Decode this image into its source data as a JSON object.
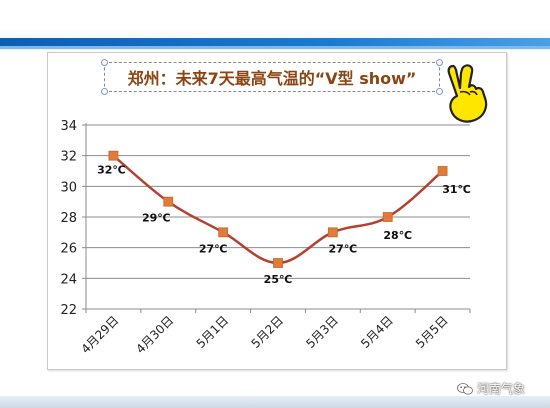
{
  "header": {
    "accent_color": "#0b5fb3"
  },
  "chart_data": {
    "type": "line",
    "title": "郑州：未来7天最高气温的“V型 show”",
    "categories": [
      "4月29日",
      "4月30日",
      "5月1日",
      "5月2日",
      "5月3日",
      "5月4日",
      "5月5日"
    ],
    "series": [
      {
        "values": [
          32,
          29,
          27,
          25,
          27,
          28,
          31
        ],
        "data_labels": [
          "32℃",
          "29℃",
          "27℃",
          "25℃",
          "27℃",
          "28℃",
          "31℃"
        ],
        "line_color": "#b5402f",
        "marker_color": "#e07b39"
      }
    ],
    "yticks": [
      "22",
      "24",
      "26",
      "28",
      "30",
      "32",
      "34"
    ],
    "ylim": [
      22,
      34
    ],
    "grid": true,
    "legend": "none"
  },
  "decoration": {
    "victory_icon": "victory-hand-icon"
  },
  "watermark": {
    "text": "河南气象",
    "icon": "wechat-icon"
  }
}
